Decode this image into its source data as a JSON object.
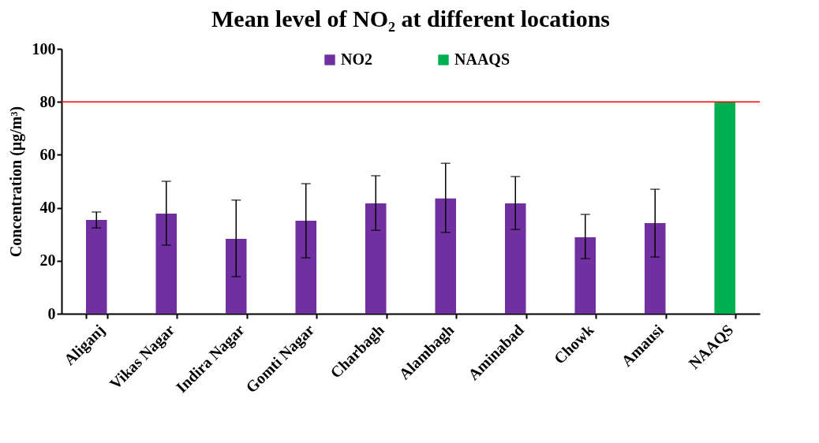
{
  "chart_data": {
    "type": "bar",
    "title": "Mean level of NO₂ at different locations",
    "ylabel": "Concentration (µg/m³)",
    "categories": [
      "Aliganj",
      "Vikas Nagar",
      "Indira Nagar",
      "Gomti Nagar",
      "Charbagh",
      "Alambagh",
      "Aminabad",
      "Chowk",
      "Amausi",
      "NAAQS"
    ],
    "series": [
      {
        "name": "NO2",
        "color": "#7030a0",
        "values": [
          35.4,
          37.8,
          28.3,
          35.1,
          41.7,
          43.5,
          41.7,
          28.9,
          34.2,
          null
        ],
        "errors": [
          [
            32.4,
            38.4
          ],
          [
            25.9,
            50
          ],
          [
            14,
            42.9
          ],
          [
            21.1,
            49.1
          ],
          [
            31.5,
            52.1
          ],
          [
            30.7,
            56.8
          ],
          [
            31.8,
            51.8
          ],
          [
            20.8,
            37.5
          ],
          [
            21.4,
            47
          ],
          null
        ]
      },
      {
        "name": "NAAQS",
        "color": "#00b050",
        "values": [
          null,
          null,
          null,
          null,
          null,
          null,
          null,
          null,
          null,
          80
        ]
      }
    ],
    "ylim": [
      0,
      100
    ],
    "yticks": [
      0,
      20,
      40,
      60,
      80,
      100
    ],
    "grid": false,
    "legend": "top",
    "ref_lines": [
      {
        "axis": "y",
        "value": 80,
        "color": "#ff0000"
      }
    ]
  }
}
